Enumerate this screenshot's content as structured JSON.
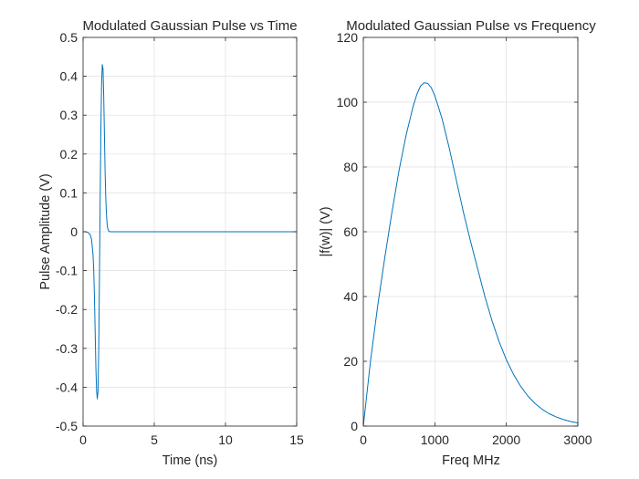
{
  "chart_data": [
    {
      "type": "line",
      "title": "Modulated Gaussian Pulse vs Time",
      "xlabel": "Time (ns)",
      "ylabel": "Pulse Amplitude (V)",
      "xlim": [
        0,
        15
      ],
      "ylim": [
        -0.5,
        0.5
      ],
      "xticks": [
        0,
        5,
        10,
        15
      ],
      "yticks": [
        -0.5,
        -0.4,
        -0.3,
        -0.2,
        -0.1,
        0,
        0.1,
        0.2,
        0.3,
        0.4,
        0.5
      ],
      "grid": true,
      "line_color": "#0072BD",
      "series": [
        {
          "x": [
            0,
            0.2,
            0.4,
            0.5,
            0.6,
            0.7,
            0.75,
            0.8,
            0.85,
            0.9,
            0.95,
            1.0,
            1.05,
            1.1,
            1.15,
            1.2,
            1.25,
            1.3,
            1.35,
            1.4,
            1.45,
            1.5,
            1.55,
            1.6,
            1.65,
            1.7,
            1.75,
            1.8,
            1.9,
            2.0,
            2.2,
            2.5,
            3,
            5,
            8,
            10,
            12,
            15
          ],
          "y": [
            0,
            0,
            -0.003,
            -0.008,
            -0.02,
            -0.06,
            -0.1,
            -0.17,
            -0.26,
            -0.35,
            -0.41,
            -0.43,
            -0.41,
            -0.3,
            -0.12,
            0.08,
            0.26,
            0.38,
            0.43,
            0.42,
            0.35,
            0.25,
            0.15,
            0.08,
            0.04,
            0.015,
            0.006,
            0.002,
            0,
            0,
            0,
            0,
            0,
            0,
            0,
            0,
            0,
            0
          ]
        }
      ]
    },
    {
      "type": "line",
      "title": "Modulated Gaussian Pulse vs Frequency",
      "xlabel": "Freq MHz",
      "ylabel": "|f(w)| (V)",
      "xlim": [
        0,
        3000
      ],
      "ylim": [
        0,
        120
      ],
      "xticks": [
        0,
        1000,
        2000,
        3000
      ],
      "yticks": [
        0,
        20,
        40,
        60,
        80,
        100,
        120
      ],
      "grid": true,
      "line_color": "#0072BD",
      "series": [
        {
          "x": [
            0,
            50,
            100,
            200,
            300,
            400,
            500,
            600,
            700,
            750,
            800,
            850,
            900,
            950,
            1000,
            1100,
            1200,
            1300,
            1400,
            1500,
            1600,
            1700,
            1800,
            1900,
            2000,
            2100,
            2200,
            2300,
            2400,
            2500,
            2600,
            2700,
            2800,
            2900,
            3000
          ],
          "y": [
            0,
            10,
            20,
            37,
            52,
            66,
            79,
            90,
            99,
            102.5,
            105,
            106,
            105.8,
            104.5,
            102,
            95,
            86,
            76,
            66,
            57,
            48.5,
            40,
            32.5,
            26,
            20.5,
            16,
            12.3,
            9.3,
            7,
            5.2,
            3.8,
            2.8,
            2,
            1.4,
            1
          ]
        }
      ]
    }
  ]
}
